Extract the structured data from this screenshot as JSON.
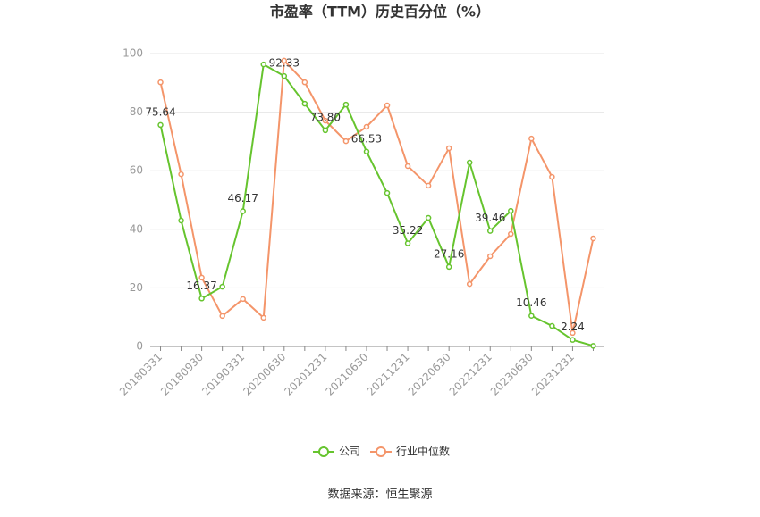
{
  "chart_data": {
    "type": "line",
    "title": "市盈率（TTM）历史百分位（%）",
    "source": "数据来源：恒生聚源",
    "categories": [
      "20180331",
      null,
      "20180930",
      null,
      "20190331",
      null,
      "20200630",
      null,
      "20201231",
      null,
      "20210630",
      null,
      "20211231",
      null,
      "20220630",
      null,
      "20221231",
      null,
      "20230630",
      null,
      "20231231",
      null
    ],
    "series": [
      {
        "name": "公司",
        "color": "#66c42e",
        "values": [
          75.64,
          43,
          16.37,
          20.4,
          46.17,
          96.3,
          92.33,
          82.9,
          73.8,
          82.6,
          66.53,
          52.4,
          35.22,
          43.9,
          27.16,
          62.8,
          39.46,
          46.3,
          10.46,
          7,
          2.24,
          0.2
        ],
        "value_labels": [
          "75.64",
          null,
          "16.37",
          null,
          "46.17",
          null,
          "92.33",
          null,
          "73.80",
          null,
          "66.53",
          null,
          "35.22",
          null,
          "27.16",
          null,
          "39.46",
          null,
          "10.46",
          null,
          "2.24",
          null
        ]
      },
      {
        "name": "行业中位数",
        "color": "#f4956a",
        "values": [
          90.2,
          58.8,
          23.5,
          10.4,
          16.2,
          9.8,
          97.6,
          90.2,
          77.1,
          70.1,
          75,
          82.3,
          61.6,
          54.9,
          67.7,
          21.3,
          30.8,
          38.4,
          71,
          57.9,
          4.6,
          36.9
        ]
      }
    ],
    "ylim": [
      0,
      100
    ],
    "yticks": [
      0,
      20,
      40,
      60,
      80,
      100
    ],
    "grid": true,
    "legend": "bottom"
  }
}
